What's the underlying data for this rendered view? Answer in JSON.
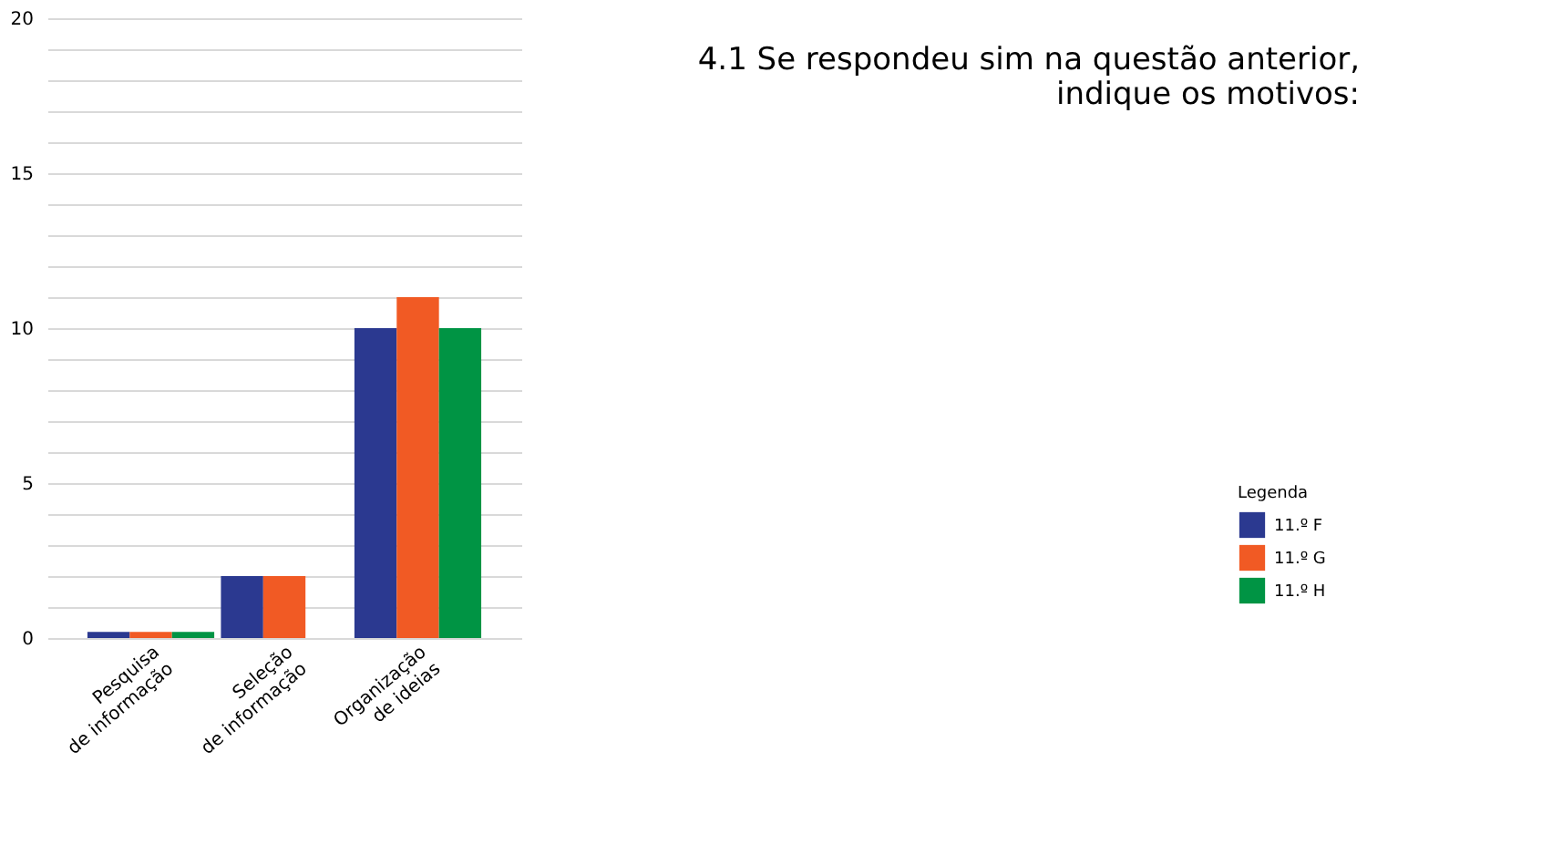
{
  "chart_data": {
    "type": "bar",
    "title": "4.1 Se respondeu sim na questão anterior, indique os motivos:",
    "categories": [
      "Pesquisa\nde informação",
      "Seleção\nde informação",
      "Organização\nde ideias"
    ],
    "series": [
      {
        "name": "11.º F",
        "color": "#2b3990",
        "values": [
          0.2,
          2,
          10
        ]
      },
      {
        "name": "11.º G",
        "color": "#f15a24",
        "values": [
          0.2,
          2,
          11
        ]
      },
      {
        "name": "11.º H",
        "color": "#009444",
        "values": [
          0.2,
          0,
          10
        ]
      }
    ],
    "legend_title": "Legenda",
    "legend": "bottom right",
    "ylim": [
      0,
      20
    ],
    "yticks": [
      0,
      {
        "value": 1,
        "label": null
      },
      {
        "value": 2,
        "label": null
      },
      {
        "value": 3,
        "label": null
      },
      {
        "value": 4,
        "label": null
      },
      5,
      {
        "value": 6,
        "label": null
      },
      {
        "value": 7,
        "label": null
      },
      {
        "value": 8,
        "label": null
      },
      {
        "value": 9,
        "label": null
      },
      10,
      {
        "value": 11,
        "label": null
      },
      {
        "value": 12,
        "label": null
      },
      {
        "value": 13,
        "label": null
      },
      {
        "value": 14,
        "label": null
      },
      15,
      {
        "value": 16,
        "label": null
      },
      {
        "value": 17,
        "label": null
      },
      {
        "value": 18,
        "label": null
      },
      {
        "value": 19,
        "label": null
      },
      20
    ],
    "grid": "y"
  }
}
